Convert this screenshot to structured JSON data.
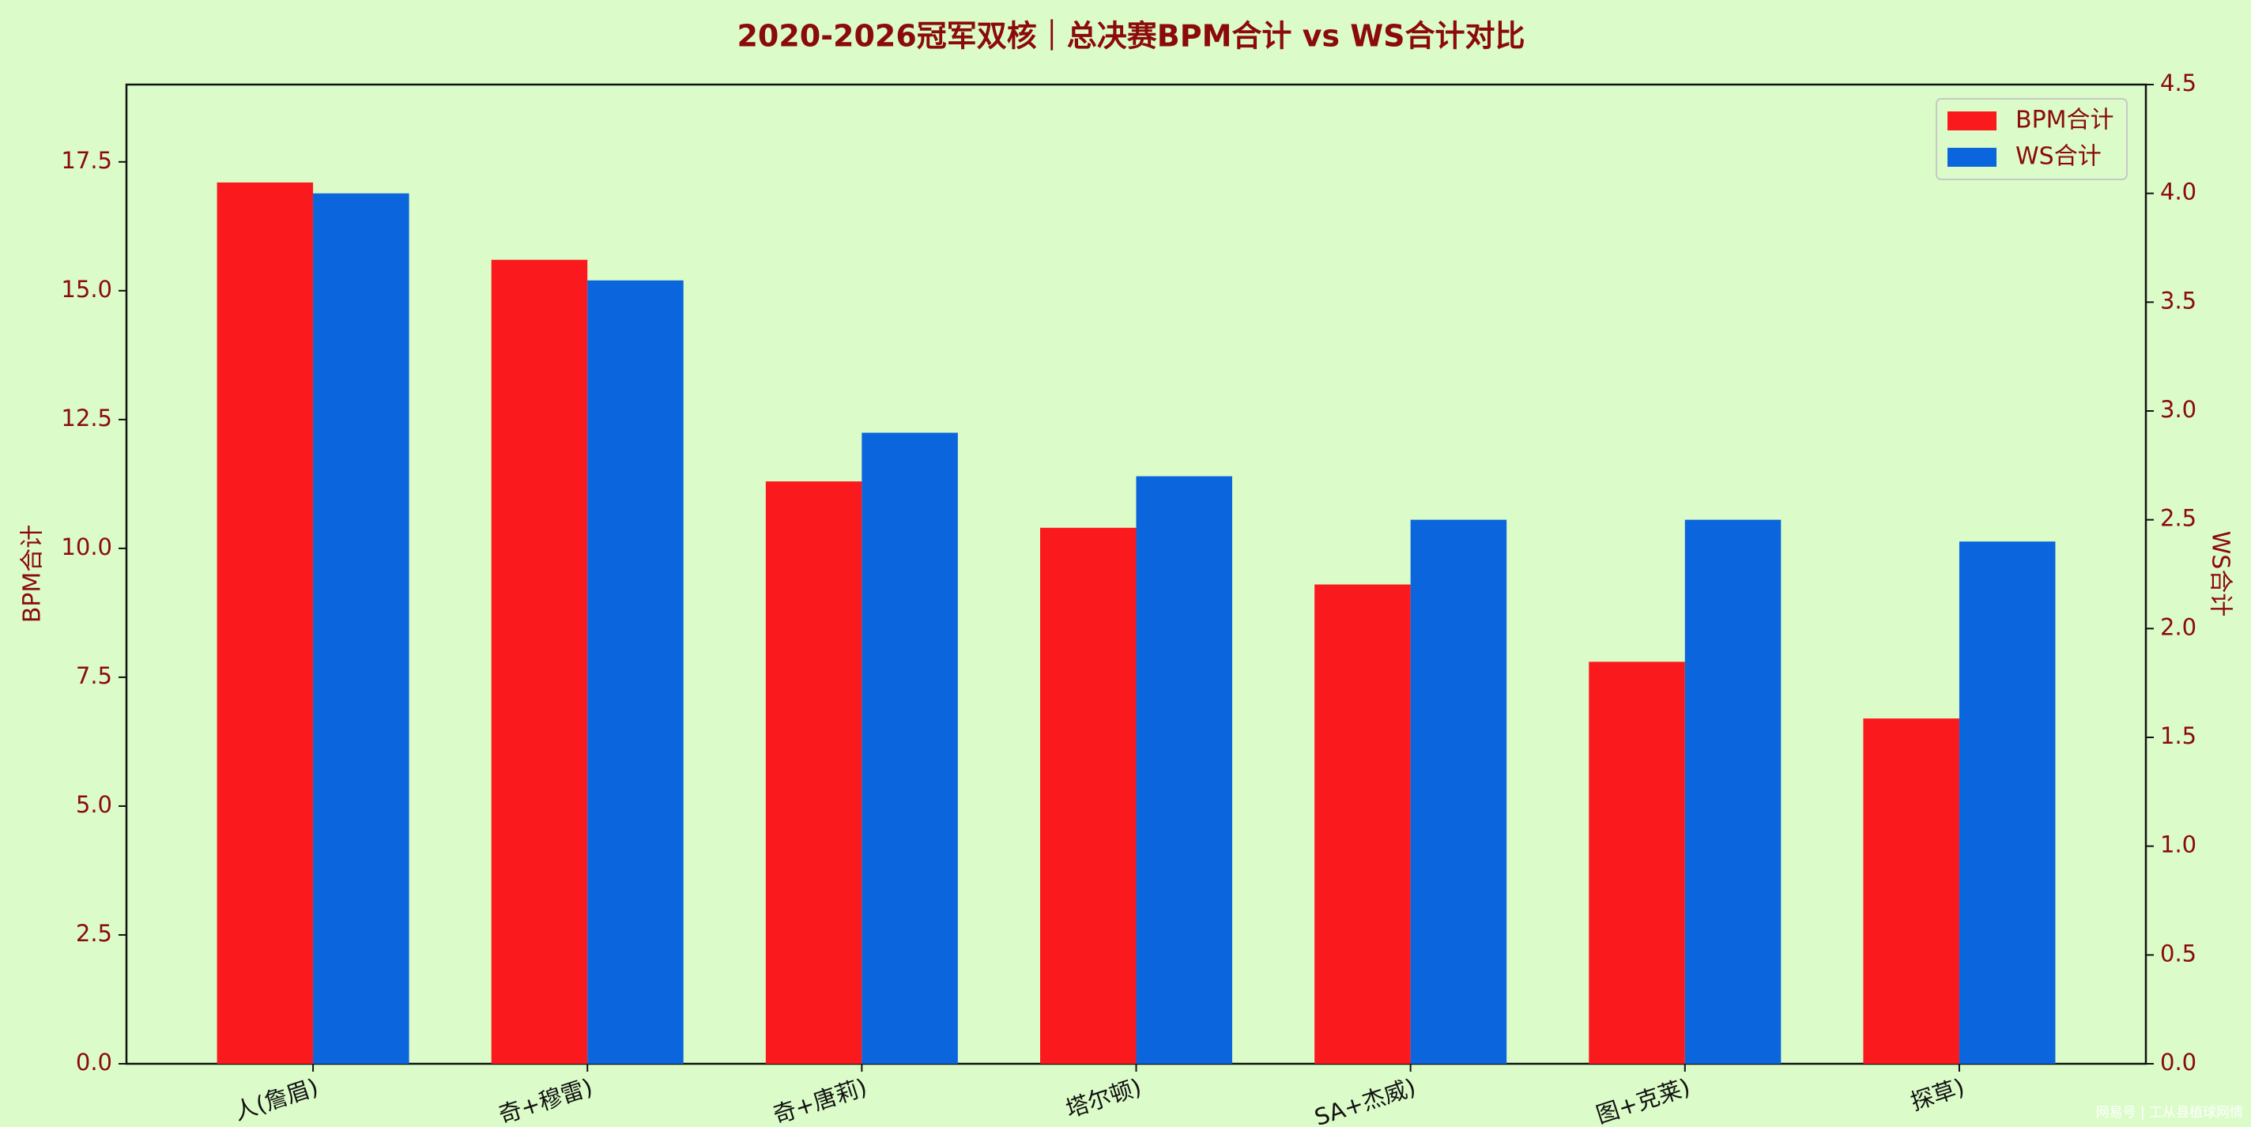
{
  "chart_data": {
    "type": "bar",
    "title": "2020-2026冠军双核｜总决赛BPM合计 vs WS合计对比",
    "categories": [
      "人(詹眉)",
      "奇+穆雷)",
      "奇+唐莉)",
      "塔尔顿)",
      "SA+杰威)",
      "图+克莱)",
      "探草)"
    ],
    "y_label": "BPM合计",
    "y2_label": "WS合计",
    "series": [
      {
        "name": "BPM合计",
        "color": "#fa1a1e",
        "values": [
          17.1,
          15.6,
          11.3,
          10.4,
          9.3,
          7.8,
          6.7
        ]
      },
      {
        "name": "WS合计",
        "color": "#0b65dc",
        "axis": "y2",
        "values": [
          4.0,
          3.6,
          2.9,
          2.7,
          2.5,
          2.5,
          2.4
        ]
      }
    ],
    "ylim": [
      0,
      19
    ],
    "yticks": [
      {
        "value": 0,
        "label": "0.0"
      },
      2.5,
      {
        "value": 5,
        "label": "5.0"
      },
      7.5,
      {
        "value": 10,
        "label": "10.0"
      },
      12.5,
      {
        "value": 15,
        "label": "15.0"
      },
      17.5
    ],
    "y2lim": [
      0,
      4.5
    ],
    "y2ticks": [
      {
        "value": 0,
        "label": "0.0"
      },
      0.5,
      {
        "value": 1,
        "label": "1.0"
      },
      1.5,
      {
        "value": 2,
        "label": "2.0"
      },
      2.5,
      {
        "value": 3,
        "label": "3.0"
      },
      3.5,
      {
        "value": 4,
        "label": "4.0"
      },
      4.5
    ],
    "legend": "upper right",
    "grid": false,
    "watermark": "网易号 | 工从县植球网情"
  }
}
